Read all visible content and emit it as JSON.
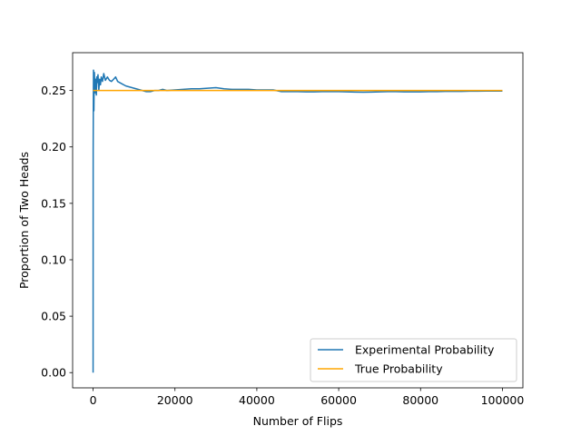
{
  "chart_data": {
    "type": "line",
    "title": "",
    "xlabel": "Number of Flips",
    "ylabel": "Proportion of Two Heads",
    "xlim": [
      -5000,
      105000
    ],
    "ylim": [
      -0.0135,
      0.2835
    ],
    "xticks": [
      0,
      20000,
      40000,
      60000,
      80000,
      100000
    ],
    "xtick_labels": [
      "0",
      "20000",
      "40000",
      "60000",
      "80000",
      "100000"
    ],
    "yticks": [
      0.0,
      0.05,
      0.1,
      0.15,
      0.2,
      0.25
    ],
    "ytick_labels": [
      "0.00",
      "0.05",
      "0.10",
      "0.15",
      "0.20",
      "0.25"
    ],
    "grid": false,
    "legend_position": "lower-right",
    "series": [
      {
        "name": "Experimental Probability",
        "color": "#1f77b4",
        "x": [
          1,
          20,
          60,
          100,
          150,
          200,
          260,
          320,
          400,
          500,
          600,
          700,
          800,
          900,
          1000,
          1200,
          1400,
          1600,
          1800,
          2000,
          2300,
          2600,
          3000,
          3500,
          4000,
          4500,
          5000,
          5500,
          6000,
          7000,
          8000,
          9000,
          10000,
          11000,
          12000,
          13000,
          14000,
          15000,
          16000,
          17000,
          18000,
          20000,
          22000,
          24000,
          26000,
          28000,
          30000,
          32000,
          34000,
          36000,
          38000,
          40000,
          42000,
          44000,
          46000,
          48000,
          50000,
          52000,
          54000,
          56000,
          58000,
          60000,
          62000,
          64000,
          66000,
          68000,
          70000,
          72000,
          74000,
          76000,
          78000,
          80000,
          82000,
          84000,
          86000,
          88000,
          90000,
          92000,
          94000,
          96000,
          98000,
          100000
        ],
        "y": [
          0.0,
          0.197,
          0.24,
          0.268,
          0.262,
          0.232,
          0.255,
          0.266,
          0.252,
          0.248,
          0.26,
          0.254,
          0.246,
          0.262,
          0.257,
          0.264,
          0.25,
          0.26,
          0.255,
          0.262,
          0.258,
          0.265,
          0.259,
          0.262,
          0.259,
          0.258,
          0.26,
          0.262,
          0.258,
          0.256,
          0.254,
          0.253,
          0.252,
          0.251,
          0.25,
          0.249,
          0.249,
          0.25,
          0.25,
          0.251,
          0.25,
          0.2505,
          0.251,
          0.2515,
          0.2515,
          0.252,
          0.2525,
          0.2515,
          0.251,
          0.251,
          0.251,
          0.2505,
          0.2505,
          0.2505,
          0.249,
          0.249,
          0.249,
          0.2488,
          0.2488,
          0.249,
          0.249,
          0.249,
          0.2488,
          0.2486,
          0.2485,
          0.2486,
          0.2488,
          0.249,
          0.249,
          0.2488,
          0.2488,
          0.2488,
          0.249,
          0.249,
          0.2492,
          0.2492,
          0.2492,
          0.2494,
          0.2494,
          0.2495,
          0.2495,
          0.2495
        ]
      },
      {
        "name": "True Probability",
        "color": "#ffa500",
        "x": [
          1,
          100000
        ],
        "y": [
          0.25,
          0.25
        ]
      }
    ]
  }
}
